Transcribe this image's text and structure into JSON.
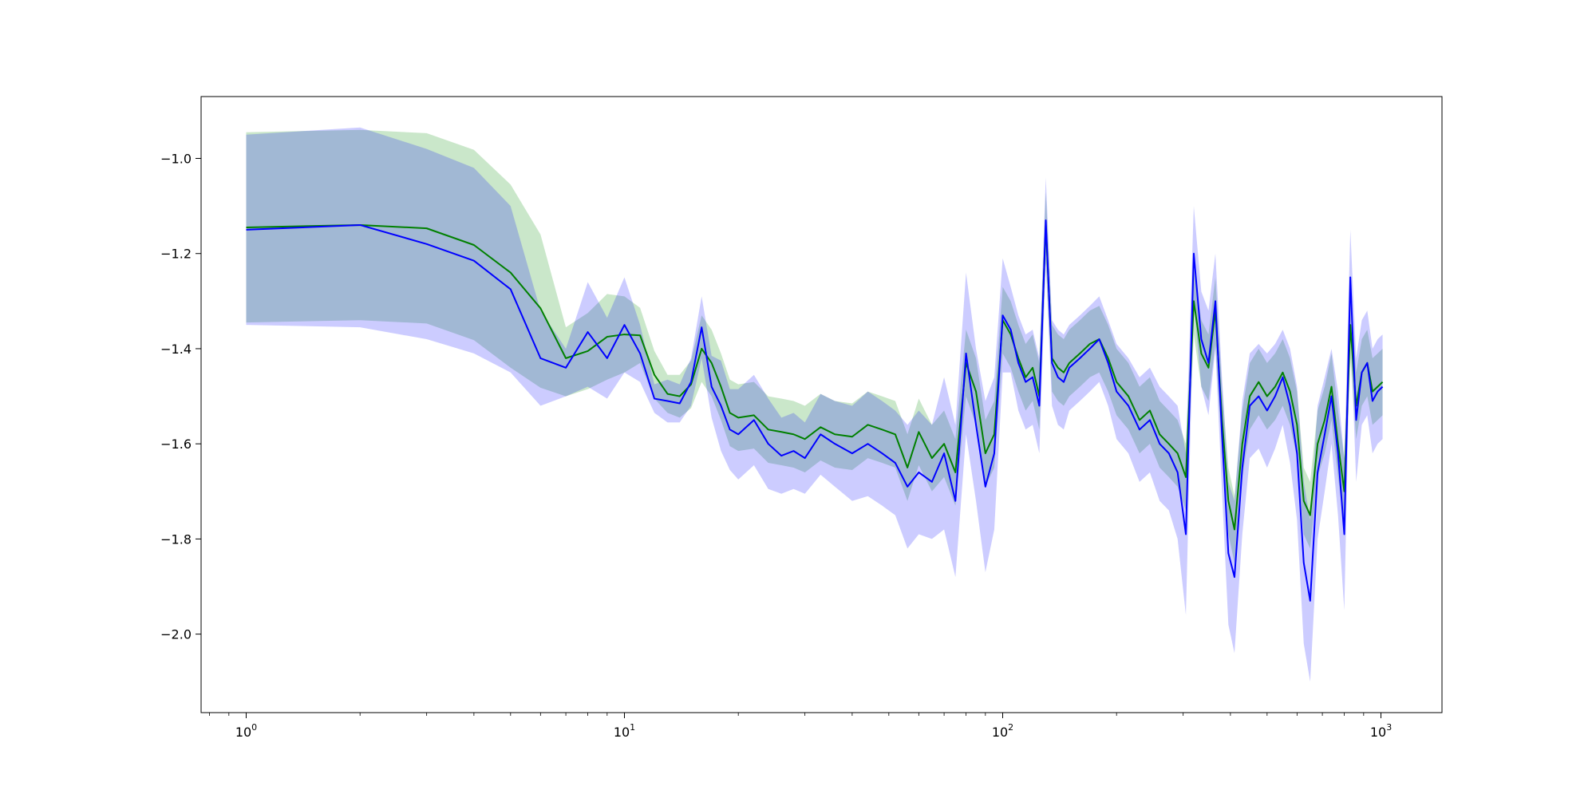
{
  "chart_data": {
    "type": "line",
    "title": "",
    "xlabel": "",
    "ylabel": "",
    "xscale": "log",
    "xlim": [
      0.76,
      1450
    ],
    "ylim": [
      -2.165,
      -0.87
    ],
    "grid": false,
    "legend": "none",
    "x_ticks": [
      {
        "value": 1,
        "base": "10",
        "exp": "0"
      },
      {
        "value": 10,
        "base": "10",
        "exp": "1"
      },
      {
        "value": 100,
        "base": "10",
        "exp": "2"
      },
      {
        "value": 1000,
        "base": "10",
        "exp": "3"
      }
    ],
    "y_ticks": [
      {
        "value": -1.0,
        "label": "−1.0"
      },
      {
        "value": -1.2,
        "label": "−1.2"
      },
      {
        "value": -1.4,
        "label": "−1.4"
      },
      {
        "value": -1.6,
        "label": "−1.6"
      },
      {
        "value": -1.8,
        "label": "−1.8"
      },
      {
        "value": -2.0,
        "label": "−2.0"
      }
    ],
    "series": [
      {
        "color": "#008000",
        "band_color": "#2ca02c",
        "band_opacity": 0.25,
        "x": [
          1,
          2,
          3,
          4,
          5,
          6,
          7,
          8,
          9,
          10,
          11,
          12,
          13,
          14,
          15,
          16,
          17,
          18,
          19,
          20,
          22,
          24,
          26,
          28,
          30,
          33,
          36,
          40,
          44,
          48,
          52,
          56,
          60,
          65,
          70,
          75,
          80,
          85,
          90,
          95,
          100,
          105,
          110,
          115,
          120,
          125,
          130,
          135,
          140,
          145,
          150,
          160,
          170,
          180,
          190,
          200,
          215,
          230,
          245,
          260,
          275,
          290,
          305,
          320,
          335,
          350,
          365,
          380,
          395,
          410,
          430,
          450,
          475,
          500,
          525,
          550,
          575,
          600,
          625,
          650,
          680,
          710,
          740,
          770,
          800,
          830,
          860,
          890,
          920,
          950,
          980,
          1010
        ],
        "y": [
          -1.145,
          -1.14,
          -1.147,
          -1.182,
          -1.24,
          -1.315,
          -1.42,
          -1.405,
          -1.375,
          -1.37,
          -1.372,
          -1.455,
          -1.495,
          -1.5,
          -1.475,
          -1.4,
          -1.43,
          -1.48,
          -1.535,
          -1.545,
          -1.54,
          -1.57,
          -1.575,
          -1.58,
          -1.59,
          -1.565,
          -1.58,
          -1.585,
          -1.56,
          -1.57,
          -1.58,
          -1.65,
          -1.575,
          -1.63,
          -1.6,
          -1.66,
          -1.43,
          -1.49,
          -1.62,
          -1.58,
          -1.34,
          -1.37,
          -1.42,
          -1.46,
          -1.44,
          -1.5,
          -1.14,
          -1.42,
          -1.44,
          -1.45,
          -1.43,
          -1.41,
          -1.39,
          -1.38,
          -1.42,
          -1.47,
          -1.5,
          -1.55,
          -1.53,
          -1.58,
          -1.6,
          -1.62,
          -1.67,
          -1.3,
          -1.41,
          -1.44,
          -1.32,
          -1.55,
          -1.72,
          -1.78,
          -1.6,
          -1.5,
          -1.47,
          -1.5,
          -1.48,
          -1.45,
          -1.49,
          -1.56,
          -1.72,
          -1.75,
          -1.6,
          -1.55,
          -1.48,
          -1.6,
          -1.7,
          -1.35,
          -1.52,
          -1.45,
          -1.43,
          -1.49,
          -1.48,
          -1.47
        ],
        "lower": [
          -1.345,
          -1.34,
          -1.347,
          -1.382,
          -1.44,
          -1.482,
          -1.5,
          -1.485,
          -1.465,
          -1.45,
          -1.43,
          -1.505,
          -1.535,
          -1.545,
          -1.525,
          -1.47,
          -1.5,
          -1.55,
          -1.605,
          -1.615,
          -1.61,
          -1.64,
          -1.645,
          -1.65,
          -1.66,
          -1.635,
          -1.65,
          -1.655,
          -1.63,
          -1.64,
          -1.65,
          -1.72,
          -1.645,
          -1.7,
          -1.67,
          -1.73,
          -1.5,
          -1.56,
          -1.69,
          -1.65,
          -1.41,
          -1.44,
          -1.49,
          -1.53,
          -1.51,
          -1.57,
          -1.21,
          -1.49,
          -1.51,
          -1.52,
          -1.5,
          -1.48,
          -1.46,
          -1.45,
          -1.49,
          -1.54,
          -1.57,
          -1.62,
          -1.6,
          -1.65,
          -1.67,
          -1.69,
          -1.74,
          -1.37,
          -1.48,
          -1.51,
          -1.39,
          -1.62,
          -1.79,
          -1.85,
          -1.67,
          -1.57,
          -1.54,
          -1.57,
          -1.55,
          -1.52,
          -1.56,
          -1.63,
          -1.79,
          -1.82,
          -1.67,
          -1.62,
          -1.55,
          -1.67,
          -1.77,
          -1.42,
          -1.59,
          -1.52,
          -1.5,
          -1.56,
          -1.55,
          -1.54
        ],
        "upper": [
          -0.945,
          -0.94,
          -0.947,
          -0.982,
          -1.055,
          -1.16,
          -1.355,
          -1.325,
          -1.285,
          -1.29,
          -1.314,
          -1.405,
          -1.455,
          -1.455,
          -1.425,
          -1.33,
          -1.36,
          -1.41,
          -1.465,
          -1.475,
          -1.47,
          -1.5,
          -1.505,
          -1.51,
          -1.52,
          -1.495,
          -1.51,
          -1.515,
          -1.49,
          -1.5,
          -1.51,
          -1.58,
          -1.505,
          -1.56,
          -1.53,
          -1.59,
          -1.36,
          -1.42,
          -1.55,
          -1.51,
          -1.27,
          -1.3,
          -1.35,
          -1.39,
          -1.37,
          -1.43,
          -1.07,
          -1.35,
          -1.37,
          -1.38,
          -1.36,
          -1.34,
          -1.32,
          -1.31,
          -1.35,
          -1.4,
          -1.43,
          -1.48,
          -1.46,
          -1.51,
          -1.53,
          -1.55,
          -1.6,
          -1.23,
          -1.34,
          -1.37,
          -1.25,
          -1.48,
          -1.65,
          -1.71,
          -1.53,
          -1.43,
          -1.4,
          -1.43,
          -1.41,
          -1.38,
          -1.42,
          -1.49,
          -1.65,
          -1.68,
          -1.53,
          -1.48,
          -1.41,
          -1.53,
          -1.63,
          -1.28,
          -1.45,
          -1.38,
          -1.36,
          -1.42,
          -1.41,
          -1.4
        ]
      },
      {
        "color": "#0000ff",
        "band_color": "#0000ff",
        "band_opacity": 0.2,
        "x": [
          1,
          2,
          3,
          4,
          5,
          6,
          7,
          8,
          9,
          10,
          11,
          12,
          13,
          14,
          15,
          16,
          17,
          18,
          19,
          20,
          22,
          24,
          26,
          28,
          30,
          33,
          36,
          40,
          44,
          48,
          52,
          56,
          60,
          65,
          70,
          75,
          80,
          85,
          90,
          95,
          100,
          105,
          110,
          115,
          120,
          125,
          130,
          135,
          140,
          145,
          150,
          160,
          170,
          180,
          190,
          200,
          215,
          230,
          245,
          260,
          275,
          290,
          305,
          320,
          335,
          350,
          365,
          380,
          395,
          410,
          430,
          450,
          475,
          500,
          525,
          550,
          575,
          600,
          625,
          650,
          680,
          710,
          740,
          770,
          800,
          830,
          860,
          890,
          920,
          950,
          980,
          1010
        ],
        "y": [
          -1.15,
          -1.14,
          -1.18,
          -1.215,
          -1.275,
          -1.42,
          -1.44,
          -1.365,
          -1.42,
          -1.35,
          -1.41,
          -1.505,
          -1.51,
          -1.515,
          -1.47,
          -1.355,
          -1.48,
          -1.52,
          -1.57,
          -1.58,
          -1.55,
          -1.6,
          -1.625,
          -1.615,
          -1.63,
          -1.58,
          -1.6,
          -1.62,
          -1.6,
          -1.62,
          -1.64,
          -1.69,
          -1.66,
          -1.68,
          -1.62,
          -1.72,
          -1.41,
          -1.56,
          -1.69,
          -1.62,
          -1.33,
          -1.36,
          -1.43,
          -1.47,
          -1.46,
          -1.52,
          -1.13,
          -1.43,
          -1.46,
          -1.47,
          -1.44,
          -1.42,
          -1.4,
          -1.38,
          -1.43,
          -1.49,
          -1.52,
          -1.57,
          -1.55,
          -1.6,
          -1.62,
          -1.66,
          -1.79,
          -1.2,
          -1.38,
          -1.43,
          -1.3,
          -1.58,
          -1.83,
          -1.88,
          -1.65,
          -1.52,
          -1.5,
          -1.53,
          -1.5,
          -1.46,
          -1.52,
          -1.62,
          -1.85,
          -1.93,
          -1.66,
          -1.58,
          -1.5,
          -1.62,
          -1.79,
          -1.25,
          -1.55,
          -1.45,
          -1.43,
          -1.51,
          -1.49,
          -1.48
        ],
        "lower": [
          -1.35,
          -1.355,
          -1.38,
          -1.41,
          -1.45,
          -1.52,
          -1.5,
          -1.48,
          -1.505,
          -1.45,
          -1.47,
          -1.535,
          -1.555,
          -1.555,
          -1.52,
          -1.42,
          -1.545,
          -1.615,
          -1.655,
          -1.675,
          -1.645,
          -1.695,
          -1.705,
          -1.695,
          -1.705,
          -1.665,
          -1.69,
          -1.72,
          -1.71,
          -1.73,
          -1.75,
          -1.82,
          -1.79,
          -1.8,
          -1.78,
          -1.88,
          -1.58,
          -1.72,
          -1.87,
          -1.78,
          -1.45,
          -1.45,
          -1.53,
          -1.57,
          -1.56,
          -1.62,
          -1.22,
          -1.52,
          -1.56,
          -1.57,
          -1.53,
          -1.51,
          -1.49,
          -1.47,
          -1.52,
          -1.59,
          -1.62,
          -1.68,
          -1.66,
          -1.72,
          -1.74,
          -1.8,
          -1.96,
          -1.3,
          -1.48,
          -1.54,
          -1.4,
          -1.7,
          -1.98,
          -2.04,
          -1.79,
          -1.63,
          -1.61,
          -1.65,
          -1.61,
          -1.56,
          -1.64,
          -1.76,
          -2.02,
          -2.1,
          -1.8,
          -1.7,
          -1.6,
          -1.75,
          -1.95,
          -1.35,
          -1.68,
          -1.56,
          -1.54,
          -1.62,
          -1.6,
          -1.59
        ],
        "upper": [
          -0.95,
          -0.935,
          -0.98,
          -1.02,
          -1.1,
          -1.32,
          -1.4,
          -1.26,
          -1.335,
          -1.25,
          -1.35,
          -1.475,
          -1.465,
          -1.475,
          -1.42,
          -1.29,
          -1.415,
          -1.425,
          -1.485,
          -1.485,
          -1.455,
          -1.505,
          -1.545,
          -1.535,
          -1.555,
          -1.495,
          -1.51,
          -1.52,
          -1.49,
          -1.51,
          -1.53,
          -1.56,
          -1.53,
          -1.56,
          -1.46,
          -1.56,
          -1.24,
          -1.4,
          -1.51,
          -1.46,
          -1.21,
          -1.27,
          -1.33,
          -1.37,
          -1.36,
          -1.42,
          -1.04,
          -1.34,
          -1.36,
          -1.37,
          -1.35,
          -1.33,
          -1.31,
          -1.29,
          -1.34,
          -1.39,
          -1.42,
          -1.46,
          -1.44,
          -1.48,
          -1.5,
          -1.52,
          -1.62,
          -1.1,
          -1.28,
          -1.32,
          -1.2,
          -1.46,
          -1.68,
          -1.72,
          -1.51,
          -1.41,
          -1.39,
          -1.41,
          -1.39,
          -1.36,
          -1.4,
          -1.48,
          -1.68,
          -1.76,
          -1.52,
          -1.46,
          -1.4,
          -1.49,
          -1.63,
          -1.15,
          -1.42,
          -1.34,
          -1.32,
          -1.4,
          -1.38,
          -1.37
        ]
      }
    ]
  }
}
